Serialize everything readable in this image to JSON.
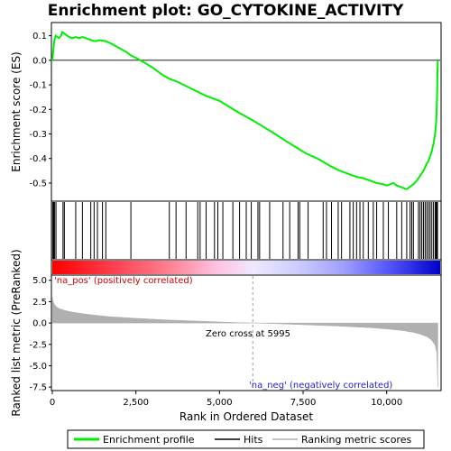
{
  "title": "Enrichment plot: GO_CYTOKINE_ACTIVITY",
  "chart_data": [
    {
      "type": "line",
      "panel": "enrichment",
      "ylabel": "Enrichment score (ES)",
      "xlim": [
        0,
        11600
      ],
      "ylim": [
        -0.57,
        0.15
      ],
      "yticks": [
        0.1,
        0.0,
        -0.1,
        -0.2,
        -0.3,
        -0.4,
        -0.5
      ],
      "ytick_labels": [
        "0.1",
        "0.0",
        "-0.1",
        "-0.2",
        "-0.3",
        "-0.4",
        "-0.5"
      ],
      "series": [
        {
          "name": "Enrichment profile",
          "color": "#00ee00",
          "x": [
            0,
            30,
            60,
            100,
            150,
            200,
            260,
            300,
            350,
            400,
            500,
            600,
            700,
            800,
            900,
            1000,
            1100,
            1200,
            1300,
            1400,
            1500,
            1600,
            1800,
            2000,
            2200,
            2350,
            2500,
            2700,
            3000,
            3300,
            3500,
            3700,
            4000,
            4300,
            4600,
            5000,
            5300,
            5600,
            6000,
            6300,
            6600,
            7000,
            7300,
            7600,
            8000,
            8300,
            8600,
            8900,
            9100,
            9300,
            9500,
            9700,
            9900,
            10000,
            10100,
            10200,
            10300,
            10400,
            10500,
            10600,
            10700,
            10800,
            10900,
            11000,
            11100,
            11200,
            11250,
            11300,
            11350,
            11400,
            11450,
            11480,
            11500,
            11510,
            11520,
            11530
          ],
          "y": [
            0.0,
            0.04,
            0.08,
            0.1,
            0.095,
            0.09,
            0.1,
            0.115,
            0.11,
            0.105,
            0.095,
            0.09,
            0.095,
            0.09,
            0.095,
            0.09,
            0.085,
            0.08,
            0.078,
            0.082,
            0.08,
            0.078,
            0.065,
            0.05,
            0.035,
            0.02,
            0.01,
            -0.005,
            -0.03,
            -0.06,
            -0.075,
            -0.085,
            -0.105,
            -0.125,
            -0.145,
            -0.165,
            -0.19,
            -0.215,
            -0.245,
            -0.27,
            -0.295,
            -0.33,
            -0.355,
            -0.38,
            -0.405,
            -0.43,
            -0.45,
            -0.465,
            -0.475,
            -0.48,
            -0.49,
            -0.5,
            -0.505,
            -0.51,
            -0.505,
            -0.5,
            -0.51,
            -0.515,
            -0.52,
            -0.525,
            -0.515,
            -0.505,
            -0.49,
            -0.47,
            -0.45,
            -0.42,
            -0.41,
            -0.39,
            -0.37,
            -0.34,
            -0.3,
            -0.25,
            -0.18,
            -0.12,
            -0.05,
            0.0
          ]
        }
      ],
      "hits": [
        10,
        40,
        70,
        110,
        320,
        360,
        700,
        900,
        1150,
        1250,
        1350,
        1500,
        1600,
        2350,
        3500,
        3700,
        4000,
        4350,
        4420,
        4600,
        4850,
        4950,
        5100,
        5400,
        5600,
        5800,
        5950,
        6150,
        6200,
        6500,
        6900,
        7100,
        7350,
        7400,
        7650,
        8100,
        8200,
        8350,
        8550,
        8650,
        8900,
        9000,
        9100,
        9200,
        9300,
        9450,
        9600,
        9700,
        9900,
        10050,
        10300,
        10450,
        10600,
        10700,
        10750,
        10800,
        10950,
        11000,
        11050,
        11100,
        11150,
        11200,
        11250,
        11300,
        11350,
        11400,
        11450,
        11480,
        11500,
        11520
      ]
    },
    {
      "type": "area",
      "panel": "ranked-metric",
      "xlabel": "Rank in Ordered Dataset",
      "ylabel": "Ranked list metric (PreRanked)",
      "xlim": [
        0,
        11600
      ],
      "ylim": [
        -7.8,
        5.5
      ],
      "xticks": [
        0,
        2500,
        5000,
        7500,
        10000
      ],
      "xtick_labels": [
        "0",
        "2,500",
        "5,000",
        "7,500",
        "10,000"
      ],
      "yticks": [
        5.0,
        2.5,
        0.0,
        -2.5,
        -5.0,
        -7.5
      ],
      "ytick_labels": [
        "5.0",
        "2.5",
        "0.0",
        "-2.5",
        "-5.0",
        "-7.5"
      ],
      "x": [
        0,
        20,
        60,
        120,
        200,
        350,
        500,
        800,
        1200,
        1700,
        2500,
        3500,
        4500,
        5500,
        5995,
        6500,
        7500,
        8500,
        9500,
        10000,
        10500,
        10800,
        11000,
        11200,
        11350,
        11450,
        11500,
        11530
      ],
      "y": [
        3.0,
        2.6,
        2.2,
        1.9,
        1.7,
        1.5,
        1.35,
        1.15,
        0.95,
        0.75,
        0.55,
        0.35,
        0.2,
        0.05,
        0.0,
        -0.05,
        -0.2,
        -0.35,
        -0.55,
        -0.7,
        -0.9,
        -1.1,
        -1.3,
        -1.6,
        -2.0,
        -2.6,
        -3.5,
        -7.5
      ],
      "color": "#b0b0b0",
      "zero_cross_rank": 5995
    }
  ],
  "annotations": {
    "na_pos": "'na_pos' (positively correlated)",
    "na_neg": "'na_neg' (negatively correlated)",
    "zero_cross": "Zero cross at 5995"
  },
  "legend": {
    "items": [
      {
        "label": "Enrichment profile",
        "color": "#00ee00"
      },
      {
        "label": "Hits",
        "color": "#000000"
      },
      {
        "label": "Ranking metric scores",
        "color": "#b0b0b0"
      }
    ]
  }
}
